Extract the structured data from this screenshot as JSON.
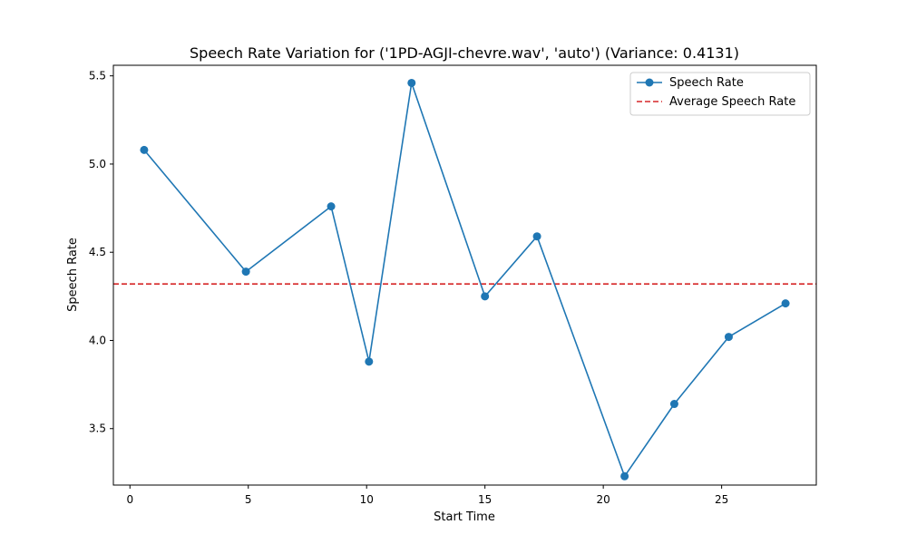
{
  "chart_data": {
    "type": "line",
    "title": "Speech Rate Variation for ('1PD-AGJI-chevre.wav', 'auto') (Variance: 0.4131)",
    "xlabel": "Start Time",
    "ylabel": "Speech Rate",
    "xlim": [
      -0.7,
      29.0
    ],
    "ylim": [
      3.18,
      5.56
    ],
    "x_ticks": [
      0,
      5,
      10,
      15,
      20,
      25
    ],
    "y_ticks": [
      3.5,
      4.0,
      4.5,
      5.0,
      5.5
    ],
    "grid": false,
    "legend_position": "top-right",
    "series": [
      {
        "name": "Speech Rate",
        "style": "solid-line-with-circle-markers",
        "color": "#1f77b4",
        "x": [
          0.6,
          4.9,
          8.5,
          10.1,
          11.9,
          15.0,
          17.2,
          20.9,
          23.0,
          25.3,
          27.7
        ],
        "y": [
          5.08,
          4.39,
          4.76,
          3.88,
          5.46,
          4.25,
          4.59,
          3.23,
          3.64,
          4.02,
          4.21
        ]
      }
    ],
    "reference_lines": [
      {
        "name": "Average Speech Rate",
        "style": "dashed",
        "color": "#d62728",
        "y": 4.32
      }
    ]
  }
}
